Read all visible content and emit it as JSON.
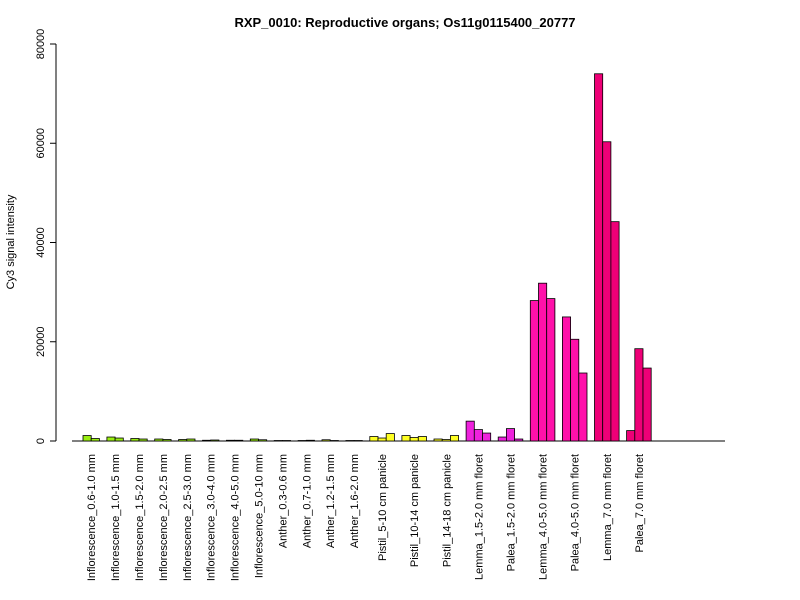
{
  "chart_data": {
    "type": "bar",
    "title": "RXP_0010: Reproductive organs; Os11g0115400_20777",
    "xlabel": "",
    "ylabel": "Cy3 signal intensity",
    "ylim": [
      0,
      80000
    ],
    "yticks": [
      0,
      20000,
      40000,
      60000,
      80000
    ],
    "grid": false,
    "legend": "none",
    "groups": [
      {
        "label": "Inflorescence_0.6-1.0 mm",
        "color": "#99ee11",
        "values": [
          1100,
          500
        ]
      },
      {
        "label": "Inflorescence_1.0-1.5 mm",
        "color": "#99ee11",
        "values": [
          800,
          600
        ]
      },
      {
        "label": "Inflorescence_1.5-2.0 mm",
        "color": "#99ee11",
        "values": [
          500,
          400
        ]
      },
      {
        "label": "Inflorescence_2.0-2.5 mm",
        "color": "#99ee11",
        "values": [
          400,
          300
        ]
      },
      {
        "label": "Inflorescence_2.5-3.0 mm",
        "color": "#99ee11",
        "values": [
          300,
          400
        ]
      },
      {
        "label": "Inflorescence_3.0-4.0 mm",
        "color": "#99ee11",
        "values": [
          150,
          200
        ]
      },
      {
        "label": "Inflorescence_4.0-5.0 mm",
        "color": "#99ee11",
        "values": [
          150,
          150
        ]
      },
      {
        "label": "Inflorescence_5.0-10 mm",
        "color": "#99ee11",
        "values": [
          400,
          250
        ]
      },
      {
        "label": "Anther_0.3-0.6 mm",
        "color": "#ccdd22",
        "values": [
          100,
          100
        ]
      },
      {
        "label": "Anther_0.7-1.0 mm",
        "color": "#ccdd22",
        "values": [
          100,
          150
        ]
      },
      {
        "label": "Anther_1.2-1.5 mm",
        "color": "#ccdd22",
        "values": [
          250,
          100
        ]
      },
      {
        "label": "Anther_1.6-2.0 mm",
        "color": "#ccdd22",
        "values": [
          100,
          100
        ]
      },
      {
        "label": "Pistil_5-10 cm panicle",
        "color": "#ffff22",
        "values": [
          900,
          600,
          1500
        ]
      },
      {
        "label": "Pistil_10-14 cm panicle",
        "color": "#ffff22",
        "values": [
          1100,
          700,
          900
        ]
      },
      {
        "label": "Pistil_14-18 cm panicle",
        "color": "#ffff22",
        "values": [
          400,
          300,
          1100
        ]
      },
      {
        "label": "Lemma_1.5-2.0 mm floret",
        "color": "#ee22dd",
        "values": [
          4000,
          2300,
          1600
        ]
      },
      {
        "label": "Palea_1.5-2.0 mm floret",
        "color": "#ee22dd",
        "values": [
          800,
          2500,
          400
        ]
      },
      {
        "label": "Lemma_4.0-5.0 mm floret",
        "color": "#ff11aa",
        "values": [
          28300,
          31800,
          28700
        ]
      },
      {
        "label": "Palea_4.0-5.0 mm floret",
        "color": "#ff11aa",
        "values": [
          25000,
          20500,
          13700
        ]
      },
      {
        "label": "Lemma_7.0 mm floret",
        "color": "#ee0077",
        "values": [
          74000,
          60300,
          44200
        ]
      },
      {
        "label": "Palea_7.0 mm floret",
        "color": "#ee0077",
        "values": [
          2100,
          18600,
          14700
        ]
      }
    ]
  }
}
